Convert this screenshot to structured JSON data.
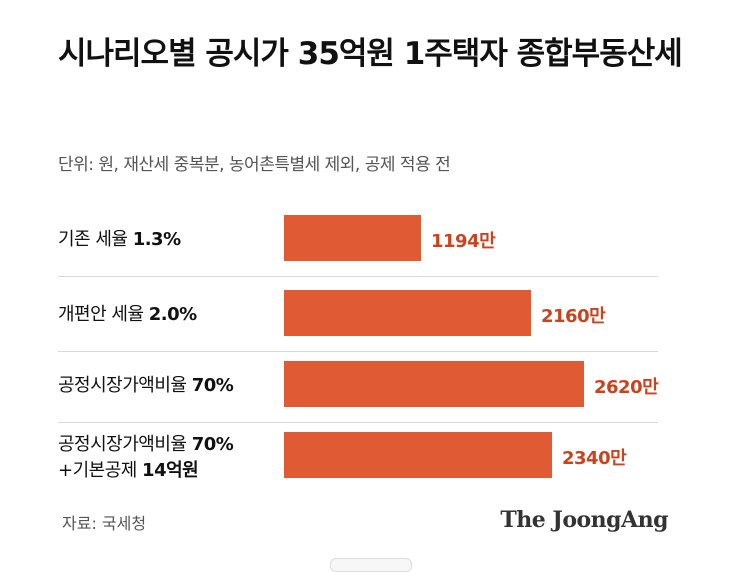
{
  "title": "시나리오별 공시가 35억원 1주택자 종합부동산세",
  "subtitle": "단위: 원, 재산세 중복분, 농어촌특별세 제외, 공제 적용 전",
  "source": "자료: 국세청",
  "logo": "The JoongAng",
  "colors": {
    "bar": "#e05a33",
    "value_text": "#c9431f"
  },
  "chart_data": {
    "type": "bar",
    "orientation": "horizontal",
    "title": "시나리오별 공시가 35억원 1주택자 종합부동산세",
    "subtitle": "단위: 원, 재산세 중복분, 농어촌특별세 제외, 공제 적용 전",
    "categories": [
      "기존 세율 1.3%",
      "개편안 세율 2.0%",
      "공정시장가액비율 70%",
      "공정시장가액비율 70% +기본공제 14억원"
    ],
    "rows": [
      {
        "label_plain": "기존 세율 ",
        "label_bold": "1.3%",
        "label_line2_plain": "",
        "label_line2_bold": "",
        "value": 1194,
        "value_label": "1194만"
      },
      {
        "label_plain": "개편안 세율 ",
        "label_bold": "2.0%",
        "label_line2_plain": "",
        "label_line2_bold": "",
        "value": 2160,
        "value_label": "2160만"
      },
      {
        "label_plain": "공정시장가액비율 ",
        "label_bold": "70%",
        "label_line2_plain": "",
        "label_line2_bold": "",
        "value": 2620,
        "value_label": "2620만"
      },
      {
        "label_plain": "공정시장가액비율 ",
        "label_bold": "70%",
        "label_line2_plain": "+기본공제 ",
        "label_line2_bold": "14억원",
        "value": 2340,
        "value_label": "2340만"
      }
    ],
    "values": [
      1194,
      2160,
      2620,
      2340
    ],
    "unit": "만",
    "xlim": [
      0,
      2620
    ],
    "grid": false,
    "legend": "none"
  }
}
